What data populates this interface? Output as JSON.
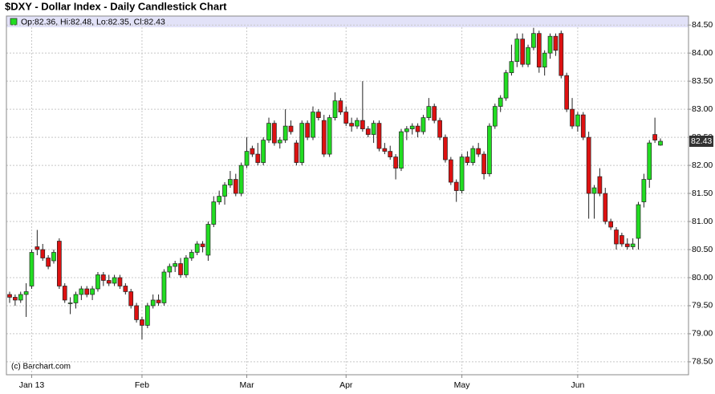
{
  "chart_data": {
    "type": "candlestick",
    "title": "$DXY - Dollar Index - Daily Candlestick Chart",
    "legend": "Op:82.36, Hi:82.48, Lo:82.35, Cl:82.43",
    "watermark": "(c) Barchart.com",
    "up_color": "#22dd22",
    "down_color": "#dd1111",
    "grid": true,
    "ylim": [
      78.27,
      84.66
    ],
    "yticks": [
      {
        "value": 78.5,
        "label": "78.50"
      },
      {
        "value": 79,
        "label": "79.00"
      },
      {
        "value": 79.5,
        "label": "79.50"
      },
      {
        "value": 80,
        "label": "80.00"
      },
      {
        "value": 80.5,
        "label": "80.50"
      },
      {
        "value": 81,
        "label": "81.00"
      },
      {
        "value": 81.5,
        "label": "81.50"
      },
      {
        "value": 82,
        "label": "82.00"
      },
      {
        "value": 82.5,
        "label": "82.50"
      },
      {
        "value": 83,
        "label": "83.00"
      },
      {
        "value": 83.5,
        "label": "83.50"
      },
      {
        "value": 84,
        "label": "84.00"
      },
      {
        "value": 84.5,
        "label": "84.50"
      }
    ],
    "categories": [
      null,
      null,
      null,
      null,
      "Jan 13",
      null,
      null,
      null,
      null,
      null,
      null,
      null,
      null,
      null,
      null,
      null,
      null,
      null,
      null,
      null,
      null,
      null,
      null,
      null,
      "Feb",
      null,
      null,
      null,
      null,
      null,
      null,
      null,
      null,
      null,
      null,
      null,
      null,
      null,
      null,
      null,
      null,
      null,
      null,
      "Mar",
      null,
      null,
      null,
      null,
      null,
      null,
      null,
      null,
      null,
      null,
      null,
      null,
      null,
      null,
      null,
      null,
      null,
      "Apr",
      null,
      null,
      null,
      null,
      null,
      null,
      null,
      null,
      null,
      null,
      null,
      null,
      null,
      null,
      null,
      null,
      null,
      null,
      null,
      null,
      "May",
      null,
      null,
      null,
      null,
      null,
      null,
      null,
      null,
      null,
      null,
      null,
      null,
      null,
      null,
      null,
      null,
      null,
      null,
      null,
      null,
      "Jun",
      null,
      null,
      null,
      null,
      null,
      null,
      null,
      null,
      null,
      null,
      null,
      null,
      null,
      null,
      null
    ],
    "candles": [
      [
        79.7,
        79.75,
        79.55,
        79.65
      ],
      [
        79.65,
        79.7,
        79.5,
        79.6
      ],
      [
        79.6,
        79.75,
        79.55,
        79.7
      ],
      [
        79.7,
        79.9,
        79.3,
        79.75
      ],
      [
        79.85,
        80.5,
        79.8,
        80.45
      ],
      [
        80.55,
        80.85,
        80.4,
        80.5
      ],
      [
        80.5,
        80.6,
        80.3,
        80.35
      ],
      [
        80.35,
        80.4,
        80.15,
        80.2
      ],
      [
        80.3,
        80.5,
        80.25,
        80.45
      ],
      [
        80.65,
        80.7,
        79.8,
        79.85
      ],
      [
        79.85,
        79.9,
        79.55,
        79.6
      ],
      [
        79.55,
        79.65,
        79.35,
        79.55
      ],
      [
        79.55,
        79.75,
        79.45,
        79.7
      ],
      [
        79.7,
        79.85,
        79.6,
        79.8
      ],
      [
        79.8,
        79.85,
        79.65,
        79.7
      ],
      [
        79.7,
        79.85,
        79.6,
        79.8
      ],
      [
        79.8,
        80.1,
        79.75,
        80.05
      ],
      [
        80.05,
        80.1,
        79.85,
        79.95
      ],
      [
        79.95,
        80.05,
        79.85,
        79.9
      ],
      [
        79.9,
        80.05,
        79.85,
        80.0
      ],
      [
        80.0,
        80.05,
        79.8,
        79.85
      ],
      [
        79.85,
        79.9,
        79.7,
        79.75
      ],
      [
        79.75,
        79.8,
        79.45,
        79.5
      ],
      [
        79.5,
        79.55,
        79.2,
        79.25
      ],
      [
        79.25,
        79.3,
        78.9,
        79.15
      ],
      [
        79.15,
        79.55,
        79.1,
        79.5
      ],
      [
        79.5,
        79.7,
        79.45,
        79.6
      ],
      [
        79.6,
        79.7,
        79.5,
        79.55
      ],
      [
        79.55,
        80.15,
        79.5,
        80.1
      ],
      [
        80.1,
        80.25,
        80.0,
        80.2
      ],
      [
        80.2,
        80.3,
        80.1,
        80.25
      ],
      [
        80.25,
        80.35,
        80.0,
        80.05
      ],
      [
        80.05,
        80.4,
        80.0,
        80.35
      ],
      [
        80.35,
        80.5,
        80.3,
        80.45
      ],
      [
        80.45,
        80.65,
        80.4,
        80.6
      ],
      [
        80.6,
        80.65,
        80.45,
        80.55
      ],
      [
        80.4,
        81.0,
        80.3,
        80.95
      ],
      [
        80.95,
        81.45,
        80.9,
        81.35
      ],
      [
        81.35,
        81.55,
        81.3,
        81.45
      ],
      [
        81.45,
        81.7,
        81.3,
        81.65
      ],
      [
        81.65,
        81.9,
        81.6,
        81.75
      ],
      [
        81.75,
        81.85,
        81.45,
        81.5
      ],
      [
        81.5,
        82.05,
        81.45,
        82.0
      ],
      [
        82.0,
        82.5,
        81.95,
        82.25
      ],
      [
        82.3,
        82.35,
        82.15,
        82.2
      ],
      [
        82.2,
        82.4,
        82.0,
        82.05
      ],
      [
        82.05,
        82.5,
        82.0,
        82.45
      ],
      [
        82.45,
        82.85,
        82.4,
        82.75
      ],
      [
        82.75,
        82.8,
        82.35,
        82.4
      ],
      [
        82.4,
        82.5,
        82.3,
        82.45
      ],
      [
        82.45,
        83.0,
        82.4,
        82.7
      ],
      [
        82.7,
        82.8,
        82.55,
        82.6
      ],
      [
        82.4,
        82.45,
        82.0,
        82.05
      ],
      [
        82.05,
        82.8,
        82.0,
        82.75
      ],
      [
        82.75,
        82.8,
        82.45,
        82.5
      ],
      [
        82.5,
        83.05,
        82.45,
        82.95
      ],
      [
        82.95,
        83.0,
        82.8,
        82.85
      ],
      [
        82.8,
        82.9,
        82.15,
        82.2
      ],
      [
        82.2,
        82.9,
        82.15,
        82.85
      ],
      [
        82.85,
        83.3,
        82.8,
        83.15
      ],
      [
        83.15,
        83.2,
        82.9,
        82.95
      ],
      [
        82.95,
        83.05,
        82.7,
        82.75
      ],
      [
        82.75,
        82.85,
        82.6,
        82.7
      ],
      [
        82.7,
        82.85,
        82.65,
        82.8
      ],
      [
        82.8,
        83.5,
        82.6,
        82.65
      ],
      [
        82.65,
        82.7,
        82.5,
        82.55
      ],
      [
        82.55,
        82.8,
        82.4,
        82.75
      ],
      [
        82.75,
        82.8,
        82.25,
        82.3
      ],
      [
        82.3,
        82.4,
        82.2,
        82.25
      ],
      [
        82.25,
        82.35,
        82.1,
        82.15
      ],
      [
        82.15,
        82.2,
        81.75,
        81.95
      ],
      [
        81.95,
        82.65,
        81.9,
        82.6
      ],
      [
        82.6,
        82.7,
        82.45,
        82.65
      ],
      [
        82.65,
        82.75,
        82.55,
        82.7
      ],
      [
        82.7,
        82.75,
        82.5,
        82.6
      ],
      [
        82.6,
        82.9,
        82.55,
        82.85
      ],
      [
        82.85,
        83.2,
        82.8,
        83.05
      ],
      [
        83.05,
        83.1,
        82.75,
        82.8
      ],
      [
        82.8,
        82.85,
        82.45,
        82.5
      ],
      [
        82.5,
        82.55,
        82.05,
        82.1
      ],
      [
        82.1,
        82.15,
        81.65,
        81.7
      ],
      [
        81.7,
        81.75,
        81.35,
        81.55
      ],
      [
        81.55,
        82.2,
        81.5,
        82.15
      ],
      [
        82.15,
        82.25,
        82.0,
        82.05
      ],
      [
        82.05,
        82.35,
        82.0,
        82.3
      ],
      [
        82.3,
        82.4,
        82.15,
        82.2
      ],
      [
        82.2,
        82.25,
        81.75,
        81.85
      ],
      [
        81.85,
        82.75,
        81.8,
        82.7
      ],
      [
        82.7,
        83.1,
        82.65,
        83.05
      ],
      [
        83.05,
        83.25,
        82.95,
        83.2
      ],
      [
        83.2,
        83.7,
        83.15,
        83.65
      ],
      [
        83.65,
        84.15,
        83.6,
        83.85
      ],
      [
        83.85,
        84.35,
        83.75,
        84.25
      ],
      [
        84.25,
        84.35,
        83.75,
        83.8
      ],
      [
        83.8,
        84.15,
        83.75,
        84.1
      ],
      [
        84.1,
        84.45,
        84.05,
        84.35
      ],
      [
        84.35,
        84.4,
        83.65,
        83.75
      ],
      [
        83.75,
        84.05,
        83.6,
        84.0
      ],
      [
        84.0,
        84.35,
        83.9,
        84.3
      ],
      [
        84.3,
        84.35,
        83.95,
        84.05
      ],
      [
        84.35,
        84.4,
        83.55,
        83.6
      ],
      [
        83.6,
        83.65,
        82.95,
        83.0
      ],
      [
        83.0,
        83.2,
        82.65,
        82.7
      ],
      [
        82.7,
        82.95,
        82.6,
        82.9
      ],
      [
        82.9,
        82.95,
        82.45,
        82.5
      ],
      [
        82.5,
        82.6,
        81.05,
        81.5
      ],
      [
        81.5,
        81.65,
        81.05,
        81.6
      ],
      [
        81.8,
        81.95,
        81.45,
        81.5
      ],
      [
        81.5,
        81.6,
        80.95,
        81.0
      ],
      [
        81.0,
        81.05,
        80.85,
        80.9
      ],
      [
        80.85,
        80.9,
        80.5,
        80.6
      ],
      [
        80.75,
        80.8,
        80.55,
        80.6
      ],
      [
        80.6,
        80.7,
        80.5,
        80.55
      ],
      [
        80.55,
        80.7,
        80.5,
        80.6
      ],
      [
        80.7,
        81.35,
        80.5,
        81.3
      ],
      [
        81.35,
        81.85,
        81.25,
        81.75
      ],
      [
        81.75,
        82.45,
        81.6,
        82.4
      ],
      [
        82.55,
        82.85,
        82.4,
        82.45
      ],
      [
        82.36,
        82.48,
        82.35,
        82.43
      ]
    ]
  }
}
